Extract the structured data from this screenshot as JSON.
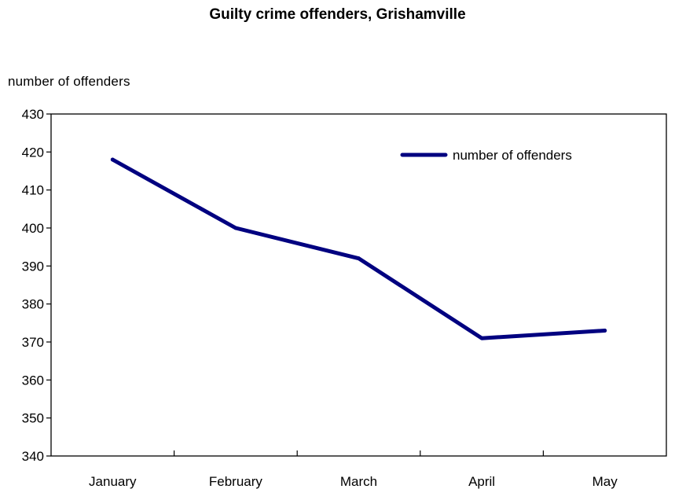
{
  "chart_data": {
    "type": "line",
    "title": "Guilty crime offenders, Grishamville",
    "xlabel": "",
    "ylabel": "number of offenders",
    "categories": [
      "January",
      "February",
      "March",
      "April",
      "May"
    ],
    "series": [
      {
        "name": "number of offenders",
        "values": [
          418,
          400,
          392,
          371,
          373
        ]
      }
    ],
    "ylim": [
      340,
      430
    ],
    "yticks": [
      340,
      350,
      360,
      370,
      380,
      390,
      400,
      410,
      420,
      430
    ],
    "grid": false,
    "legend": "top-right",
    "colors": {
      "series_line": "#000080",
      "axis": "#000000"
    }
  }
}
